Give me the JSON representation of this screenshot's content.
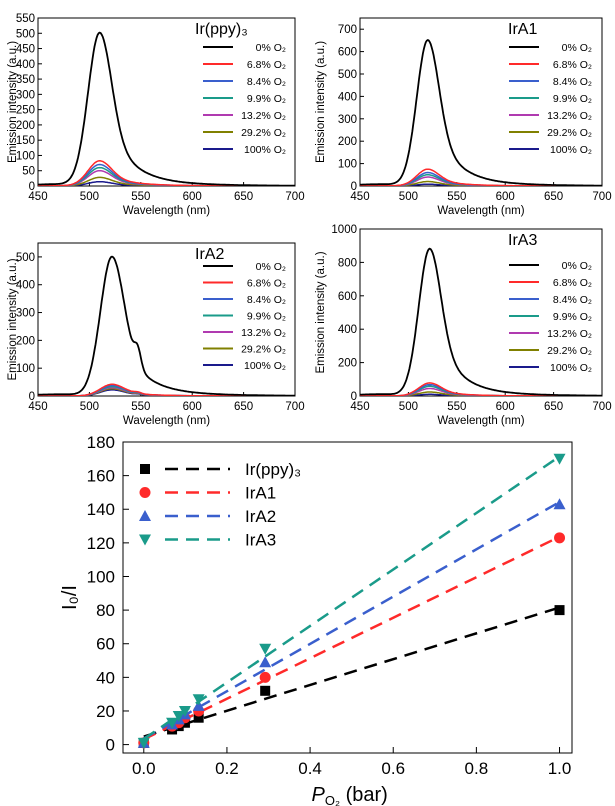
{
  "chart_data": [
    {
      "type": "line",
      "title": "Ir(ppy)₃",
      "xlabel": "Wavelength (nm)",
      "ylabel": "Emission intensity (a.u.)",
      "xlim": [
        450,
        700
      ],
      "ylim": [
        0,
        550
      ],
      "xticks": [
        450,
        500,
        550,
        600,
        650,
        700
      ],
      "yticks": [
        0,
        50,
        100,
        150,
        200,
        250,
        300,
        350,
        400,
        450,
        500,
        550
      ],
      "legend_position": "top-right",
      "peak_wavelength": 510,
      "tail_factor": 1.0,
      "second_peak": false,
      "series": [
        {
          "name": "0% O₂",
          "peak": 500,
          "color": "#000000"
        },
        {
          "name": "6.8% O₂",
          "peak": 82,
          "color": "#ff2a2a"
        },
        {
          "name": "8.4% O₂",
          "peak": 70,
          "color": "#3a5fcd"
        },
        {
          "name": "9.9% O₂",
          "peak": 60,
          "color": "#1a9b8a"
        },
        {
          "name": "13.2% O₂",
          "peak": 50,
          "color": "#b03ab0"
        },
        {
          "name": "29.2% O₂",
          "peak": 28,
          "color": "#808000"
        },
        {
          "name": "100% O₂",
          "peak": 14,
          "color": "#1a1a8c"
        }
      ]
    },
    {
      "type": "line",
      "title": "IrA1",
      "xlabel": "Wavelength (nm)",
      "ylabel": "Emission intensity (a.u.)",
      "xlim": [
        450,
        700
      ],
      "ylim": [
        0,
        750
      ],
      "xticks": [
        450,
        500,
        550,
        600,
        650,
        700
      ],
      "yticks": [
        0,
        100,
        200,
        300,
        400,
        500,
        600,
        700
      ],
      "legend_position": "top-right",
      "peak_wavelength": 520,
      "tail_factor": 1.0,
      "second_peak": false,
      "series": [
        {
          "name": "0% O₂",
          "peak": 650,
          "color": "#000000"
        },
        {
          "name": "6.8% O₂",
          "peak": 75,
          "color": "#ff2a2a"
        },
        {
          "name": "8.4% O₂",
          "peak": 60,
          "color": "#3a5fcd"
        },
        {
          "name": "9.9% O₂",
          "peak": 50,
          "color": "#1a9b8a"
        },
        {
          "name": "13.2% O₂",
          "peak": 40,
          "color": "#b03ab0"
        },
        {
          "name": "29.2% O₂",
          "peak": 20,
          "color": "#808000"
        },
        {
          "name": "100% O₂",
          "peak": 8,
          "color": "#1a1a8c"
        }
      ]
    },
    {
      "type": "line",
      "title": "IrA2",
      "xlabel": "Wavelength (nm)",
      "ylabel": "Emission intensity (a.u.)",
      "xlim": [
        450,
        700
      ],
      "ylim": [
        0,
        550
      ],
      "xticks": [
        450,
        500,
        550,
        600,
        650,
        700
      ],
      "yticks": [
        0,
        100,
        200,
        300,
        400,
        500
      ],
      "legend_position": "top-right",
      "peak_wavelength": 522,
      "tail_factor": 1.0,
      "second_peak": true,
      "series": [
        {
          "name": "0% O₂",
          "peak": 500,
          "color": "#000000"
        },
        {
          "name": "6.8% O₂",
          "peak": 42,
          "color": "#ff2a2a"
        },
        {
          "name": "8.4% O₂",
          "peak": 38,
          "color": "#3a5fcd"
        },
        {
          "name": "9.9% O₂",
          "peak": 34,
          "color": "#1a9b8a"
        },
        {
          "name": "13.2% O₂",
          "peak": 30,
          "color": "#b03ab0"
        },
        {
          "name": "29.2% O₂",
          "peak": 26,
          "color": "#808000"
        },
        {
          "name": "100% O₂",
          "peak": 22,
          "color": "#1a1a8c"
        }
      ]
    },
    {
      "type": "line",
      "title": "IrA3",
      "xlabel": "Wavelength (nm)",
      "ylabel": "Emission intensity (a.u.)",
      "xlim": [
        450,
        700
      ],
      "ylim": [
        0,
        1000
      ],
      "xticks": [
        450,
        500,
        550,
        600,
        650,
        700
      ],
      "yticks": [
        0,
        200,
        400,
        600,
        800,
        1000
      ],
      "legend_position": "top-right",
      "peak_wavelength": 522,
      "tail_factor": 1.0,
      "second_peak": false,
      "series": [
        {
          "name": "0% O₂",
          "peak": 880,
          "color": "#000000"
        },
        {
          "name": "6.8% O₂",
          "peak": 78,
          "color": "#ff2a2a"
        },
        {
          "name": "8.4% O₂",
          "peak": 68,
          "color": "#3a5fcd"
        },
        {
          "name": "9.9% O₂",
          "peak": 58,
          "color": "#1a9b8a"
        },
        {
          "name": "13.2% O₂",
          "peak": 45,
          "color": "#b03ab0"
        },
        {
          "name": "29.2% O₂",
          "peak": 24,
          "color": "#808000"
        },
        {
          "name": "100% O₂",
          "peak": 10,
          "color": "#1a1a8c"
        }
      ]
    },
    {
      "type": "scatter",
      "xlabel_prefix": "P",
      "xlabel_sub": "O₂",
      "xlabel_suffix": " (bar)",
      "ylabel": "I₀/I",
      "xlim": [
        -0.05,
        1.03
      ],
      "ylim": [
        -5,
        180
      ],
      "xticks": [
        0.0,
        0.2,
        0.4,
        0.6,
        0.8,
        1.0
      ],
      "xtick_labels": [
        "0.0",
        "0.2",
        "0.4",
        "0.6",
        "0.8",
        "1.0"
      ],
      "yticks": [
        0,
        20,
        40,
        60,
        80,
        100,
        120,
        140,
        160,
        180
      ],
      "legend_position": "top-left",
      "series": [
        {
          "name": "Ir(ppy)₃",
          "marker": "square",
          "color": "#000000",
          "x": [
            0,
            0.068,
            0.084,
            0.099,
            0.132,
            0.292,
            1.0
          ],
          "y": [
            1,
            9,
            11,
            13,
            16,
            32,
            80
          ]
        },
        {
          "name": "IrA1",
          "marker": "circle",
          "color": "#ff2a2a",
          "x": [
            0,
            0.068,
            0.084,
            0.099,
            0.132,
            0.292,
            1.0
          ],
          "y": [
            1,
            11,
            13,
            16,
            20,
            40,
            123
          ]
        },
        {
          "name": "IrA2",
          "marker": "triangle-up",
          "color": "#3a5fcd",
          "x": [
            0,
            0.068,
            0.084,
            0.099,
            0.132,
            0.292,
            1.0
          ],
          "y": [
            1,
            12,
            15,
            18,
            23,
            49,
            143
          ]
        },
        {
          "name": "IrA3",
          "marker": "triangle-down",
          "color": "#1a9b8a",
          "x": [
            0,
            0.068,
            0.084,
            0.099,
            0.132,
            0.292,
            1.0
          ],
          "y": [
            1,
            13,
            17,
            20,
            27,
            57,
            170
          ]
        }
      ]
    }
  ]
}
